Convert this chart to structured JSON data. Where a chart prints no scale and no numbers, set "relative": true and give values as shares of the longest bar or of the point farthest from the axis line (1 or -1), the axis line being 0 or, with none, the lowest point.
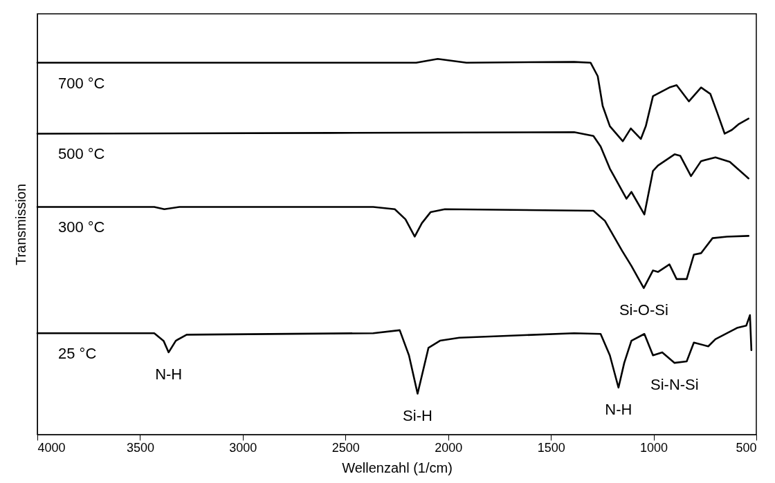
{
  "chart_data": {
    "type": "line",
    "relative": true,
    "xlabel": "Wellenzahl (1/cm)",
    "ylabel": "Transmission",
    "xlim": [
      4000,
      500
    ],
    "xticks": [
      4000,
      3500,
      3000,
      2500,
      2000,
      1500,
      1000,
      500
    ],
    "line_style": "solid",
    "series": [
      {
        "name": "700 °C",
        "color": "#000000",
        "x": [
          4000,
          2924,
          2156,
          2051,
          1911,
          1387,
          1307,
          1272,
          1248,
          1213,
          1150,
          1111,
          1062,
          1038,
          1003,
          923,
          888,
          828,
          769,
          724,
          689,
          654,
          619,
          584,
          538
        ],
        "values": [
          0.99,
          0.99,
          0.99,
          1.0,
          0.99,
          0.992,
          0.99,
          0.954,
          0.875,
          0.821,
          0.781,
          0.815,
          0.787,
          0.821,
          0.901,
          0.924,
          0.93,
          0.887,
          0.924,
          0.907,
          0.855,
          0.801,
          0.811,
          0.827,
          0.841
        ]
      },
      {
        "name": "500 °C",
        "color": "#000000",
        "x": [
          4000,
          2575,
          1387,
          1293,
          1258,
          1213,
          1132,
          1108,
          1045,
          1003,
          979,
          898,
          870,
          818,
          769,
          699,
          629,
          538
        ],
        "values": [
          0.801,
          0.803,
          0.805,
          0.795,
          0.767,
          0.708,
          0.628,
          0.646,
          0.586,
          0.702,
          0.716,
          0.746,
          0.742,
          0.688,
          0.728,
          0.738,
          0.726,
          0.682
        ]
      },
      {
        "name": "300 °C",
        "color": "#000000",
        "x": [
          4000,
          3431,
          3382,
          3308,
          2365,
          2260,
          2208,
          2163,
          2128,
          2086,
          2016,
          1293,
          1237,
          1153,
          1108,
          1048,
          1003,
          979,
          923,
          888,
          839,
          804,
          769,
          713,
          643,
          538
        ],
        "values": [
          0.606,
          0.606,
          0.6,
          0.606,
          0.606,
          0.6,
          0.573,
          0.527,
          0.563,
          0.592,
          0.6,
          0.596,
          0.569,
          0.489,
          0.449,
          0.39,
          0.437,
          0.433,
          0.453,
          0.414,
          0.414,
          0.479,
          0.483,
          0.523,
          0.527,
          0.529
        ]
      },
      {
        "name": "25 °C",
        "color": "#000000",
        "x": [
          4000,
          3431,
          3385,
          3361,
          3326,
          3273,
          2365,
          2236,
          2191,
          2149,
          2096,
          2040,
          1946,
          1387,
          1258,
          1213,
          1171,
          1143,
          1108,
          1045,
          1003,
          958,
          898,
          839,
          804,
          734,
          699,
          594,
          549,
          531,
          524
        ],
        "values": [
          0.27,
          0.27,
          0.249,
          0.219,
          0.25,
          0.266,
          0.27,
          0.278,
          0.211,
          0.109,
          0.231,
          0.25,
          0.258,
          0.27,
          0.268,
          0.211,
          0.125,
          0.191,
          0.25,
          0.268,
          0.211,
          0.219,
          0.191,
          0.195,
          0.245,
          0.235,
          0.254,
          0.284,
          0.29,
          0.318,
          0.225
        ]
      }
    ],
    "annotations": [
      {
        "text": "N-H",
        "x": 3361,
        "y": 0.219
      },
      {
        "text": "Si-H",
        "x": 2149,
        "y": 0.109
      },
      {
        "text": "N-H",
        "x": 1171,
        "y": 0.125
      },
      {
        "text": "Si-N-Si",
        "x": 898,
        "y": 0.191
      },
      {
        "text": "Si-O-Si",
        "x": 1048,
        "y": 0.39
      }
    ]
  }
}
